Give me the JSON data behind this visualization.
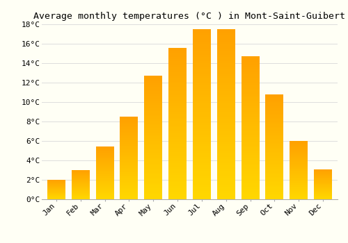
{
  "title": "Average monthly temperatures (°C ) in Mont-Saint-Guibert",
  "months": [
    "Jan",
    "Feb",
    "Mar",
    "Apr",
    "May",
    "Jun",
    "Jul",
    "Aug",
    "Sep",
    "Oct",
    "Nov",
    "Dec"
  ],
  "values": [
    2.0,
    3.0,
    5.4,
    8.5,
    12.7,
    15.6,
    17.5,
    17.5,
    14.7,
    10.8,
    6.0,
    3.1
  ],
  "bar_color_bottom": "#FFD700",
  "bar_color_top": "#FFA500",
  "ylim": [
    0,
    18
  ],
  "yticks": [
    0,
    2,
    4,
    6,
    8,
    10,
    12,
    14,
    16,
    18
  ],
  "ytick_labels": [
    "0°C",
    "2°C",
    "4°C",
    "6°C",
    "8°C",
    "10°C",
    "12°C",
    "14°C",
    "16°C",
    "18°C"
  ],
  "background_color": "#FFFFF5",
  "grid_color": "#DDDDDD",
  "title_fontsize": 9.5,
  "tick_fontsize": 8,
  "bar_width": 0.75
}
